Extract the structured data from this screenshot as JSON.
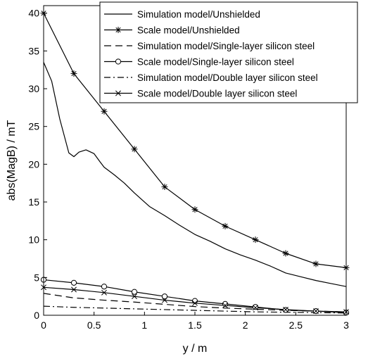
{
  "chart_data": {
    "type": "line",
    "xlabel": "y / m",
    "ylabel": "abs(MagB) / mT",
    "xlim": [
      0,
      3
    ],
    "ylim": [
      0,
      41
    ],
    "xticks": [
      0,
      0.5,
      1,
      1.5,
      2,
      2.5,
      3
    ],
    "xtick_labels": [
      "0",
      "0.5",
      "1",
      "1.5",
      "2",
      "2.5",
      "3"
    ],
    "yticks": [
      0,
      5,
      10,
      15,
      20,
      25,
      30,
      35,
      40
    ],
    "ytick_labels": [
      "0",
      "5",
      "10",
      "15",
      "20",
      "25",
      "30",
      "35",
      "40"
    ],
    "grid": false,
    "legend_position": "top-right",
    "series": [
      {
        "name": "Simulation model/Unshielded",
        "style": "solid",
        "marker": "none",
        "x": [
          0,
          0.08,
          0.16,
          0.25,
          0.3,
          0.35,
          0.42,
          0.5,
          0.56,
          0.6,
          0.7,
          0.8,
          0.9,
          1.0,
          1.05,
          1.2,
          1.35,
          1.5,
          1.65,
          1.8,
          1.95,
          2.1,
          2.25,
          2.4,
          2.55,
          2.7,
          2.85,
          3.0
        ],
        "y": [
          33.5,
          31.0,
          26.0,
          21.5,
          21.0,
          21.6,
          21.9,
          21.4,
          20.3,
          19.6,
          18.6,
          17.5,
          16.2,
          15.0,
          14.4,
          13.2,
          11.9,
          10.7,
          9.8,
          8.8,
          8.0,
          7.3,
          6.5,
          5.6,
          5.1,
          4.6,
          4.2,
          3.8
        ]
      },
      {
        "name": "Scale model/Unshielded",
        "style": "solid",
        "marker": "asterisk",
        "x": [
          0,
          0.3,
          0.6,
          0.9,
          1.2,
          1.5,
          1.8,
          2.1,
          2.4,
          2.7,
          3.0
        ],
        "y": [
          40.0,
          32.0,
          27.0,
          22.0,
          17.0,
          14.0,
          11.8,
          10.0,
          8.2,
          6.8,
          6.3
        ]
      },
      {
        "name": "Simulation model/Single-layer silicon steel",
        "style": "dashed",
        "marker": "none",
        "x": [
          0,
          0.3,
          0.6,
          0.9,
          1.2,
          1.5,
          1.8,
          2.1,
          2.4,
          2.7,
          3.0
        ],
        "y": [
          2.9,
          2.3,
          2.0,
          1.75,
          1.45,
          1.15,
          0.95,
          0.8,
          0.65,
          0.55,
          0.45
        ]
      },
      {
        "name": "Scale model/Single-layer silicon steel",
        "style": "solid",
        "marker": "circle",
        "x": [
          0,
          0.3,
          0.6,
          0.9,
          1.2,
          1.5,
          1.8,
          2.1,
          2.4,
          2.7,
          3.0
        ],
        "y": [
          4.7,
          4.3,
          3.8,
          3.1,
          2.5,
          1.9,
          1.5,
          1.1,
          0.7,
          0.55,
          0.35
        ]
      },
      {
        "name": "Simulation model/Double layer silicon steel",
        "style": "dashdot",
        "marker": "none",
        "x": [
          0,
          0.3,
          0.6,
          0.9,
          1.2,
          1.5,
          1.8,
          2.1,
          2.4,
          2.7,
          3.0
        ],
        "y": [
          1.2,
          1.05,
          0.95,
          0.85,
          0.75,
          0.65,
          0.55,
          0.45,
          0.4,
          0.35,
          0.3
        ]
      },
      {
        "name": "Scale model/Double layer silicon steel",
        "style": "solid",
        "marker": "x",
        "x": [
          0,
          0.3,
          0.6,
          0.9,
          1.2,
          1.5,
          1.8,
          2.1,
          2.4,
          2.7,
          3.0
        ],
        "y": [
          3.7,
          3.4,
          3.0,
          2.5,
          2.0,
          1.6,
          1.3,
          1.0,
          0.75,
          0.55,
          0.45
        ]
      }
    ]
  }
}
